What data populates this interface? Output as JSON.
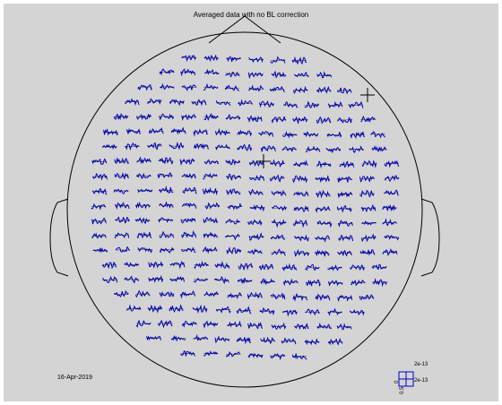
{
  "figure": {
    "title": "Averaged data with no BL correction",
    "date": "16-Apr-2019"
  },
  "scale": {
    "y_max_label": "2e-13",
    "x_max_label": "2e-13",
    "x_min_label": "0",
    "y_min_label": "0.5"
  },
  "colors": {
    "background": "#d4d4d4",
    "head_outline": "#000000",
    "trace": "#0000c8",
    "crosshair": "#000000"
  },
  "icons": {
    "scale_box": "grid-scale-icon",
    "crosshair": "crosshair-icon"
  }
}
